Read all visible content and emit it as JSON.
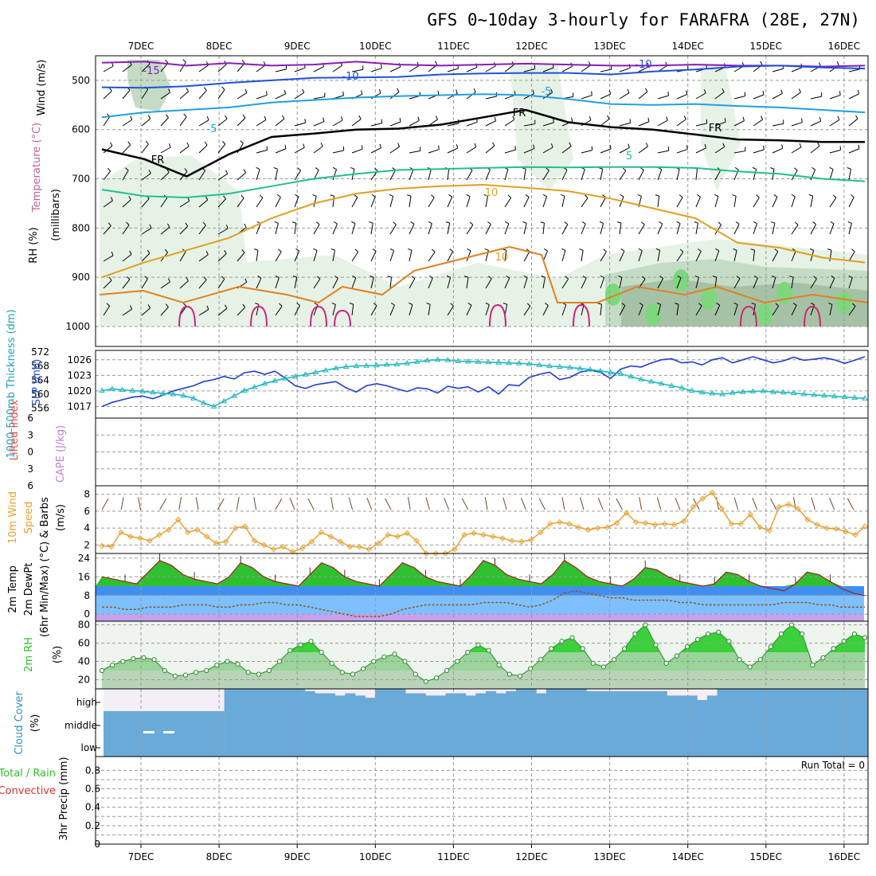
{
  "title": "GFS 0~10day 3-hourly for FARAFRA (28E, 27N)",
  "dates": [
    "7DEC",
    "8DEC",
    "9DEC",
    "10DEC",
    "11DEC",
    "12DEC",
    "13DEC",
    "14DEC",
    "15DEC",
    "16DEC"
  ],
  "run_total": "Run Total = 0",
  "colors": {
    "rh_light": "#e6f2e6",
    "rh_mid": "#c4dcc4",
    "rh_dark": "#a6c2a6",
    "rh_green": "#7dd87d",
    "isotherm_m15": "#8a1cb8",
    "isotherm_m10": "#2050e0",
    "isotherm_m5": "#20a0e0",
    "isotherm_5": "#20c090",
    "isotherm_10": "#e0a020",
    "isotherm_15": "#e08020",
    "isotherm_20": "#d02080",
    "freezing": "#000000",
    "slp": "#1f3fd0",
    "thickness": "#20b8c0",
    "wind10m": "#e8a030",
    "temp_green": "#2ec02e",
    "dewpt": "#8a5a2a",
    "rh2m": "#3ad03a",
    "cloud": "#6aaad8",
    "cape_zero": "#e05050"
  },
  "chart_data": [
    {
      "type": "area",
      "name": "upper-air",
      "ylabel_parts": [
        "Wind (m/s)",
        "Temperature (°C)",
        "RH (%)",
        "(millibars)"
      ],
      "y_ticks": [
        500,
        600,
        700,
        800,
        900,
        1000
      ],
      "ylim": [
        450,
        1000
      ],
      "isotherm_labels": [
        "-15",
        "-10",
        "-10",
        "-5",
        "-5",
        "5",
        "10",
        "10",
        "FR",
        "FR",
        "FR"
      ],
      "isotherms": [
        {
          "label": "-15",
          "color": "#8a1cb8",
          "p": [
            464,
            462,
            470,
            465,
            470,
            468,
            462,
            468,
            470,
            468,
            466,
            468,
            470,
            470,
            468,
            470,
            470,
            472,
            470
          ]
        },
        {
          "label": "-10",
          "color": "#2050e0",
          "p": [
            514,
            515,
            512,
            505,
            500,
            495,
            494,
            493,
            488,
            486,
            485,
            485,
            488,
            482,
            478,
            472,
            470,
            474,
            476
          ]
        },
        {
          "label": "-5",
          "color": "#20a0e0",
          "p": [
            575,
            565,
            560,
            555,
            545,
            540,
            535,
            532,
            530,
            528,
            530,
            538,
            548,
            550,
            548,
            552,
            555,
            560,
            565
          ]
        },
        {
          "label": "5",
          "color": "#20c090",
          "p": [
            722,
            735,
            738,
            730,
            715,
            700,
            690,
            682,
            680,
            678,
            676,
            677,
            676,
            676,
            678,
            685,
            690,
            700,
            705
          ]
        },
        {
          "label": "10",
          "color": "#e0a020",
          "p": [
            900,
            870,
            845,
            820,
            780,
            750,
            730,
            720,
            715,
            712,
            718,
            725,
            740,
            760,
            780,
            830,
            840,
            860,
            870
          ]
        },
        {
          "label": "FR",
          "color": "#000000",
          "p": [
            640,
            660,
            695,
            650,
            615,
            608,
            600,
            598,
            590,
            575,
            560,
            585,
            595,
            600,
            610,
            620,
            622,
            625,
            625
          ]
        }
      ]
    },
    {
      "type": "line",
      "name": "slp-thickness",
      "ylabel_left": "1000-500mb Thickness (dm)",
      "ylabel_right": "SLP (mb)",
      "thickness_ticks": [
        556,
        560,
        564,
        568,
        572
      ],
      "slp_ticks": [
        1017,
        1020,
        1023,
        1026
      ],
      "thickness_ylim": [
        555,
        572
      ],
      "slp_ylim": [
        1016,
        1027.5
      ],
      "series": [
        {
          "name": "SLP",
          "color": "#1f3fd0",
          "values": [
            1017.0,
            1017.8,
            1018.3,
            1018.8,
            1019.0,
            1018.5,
            1019.2,
            1020.0,
            1020.5,
            1021.0,
            1021.8,
            1022.2,
            1022.8,
            1022.3,
            1023.5,
            1023.8,
            1023.2,
            1023.8,
            1022.5,
            1021.0,
            1020.5,
            1021.2,
            1021.5,
            1021.8,
            1020.6,
            1019.8,
            1021.0,
            1021.4,
            1021.0,
            1020.4,
            1019.9,
            1020.6,
            1020.4,
            1019.6,
            1020.9,
            1020.5,
            1020.8,
            1019.8,
            1020.8,
            1019.4,
            1021.2,
            1021.0,
            1022.6,
            1023.2,
            1023.6,
            1022.2,
            1022.6,
            1023.6,
            1024.0,
            1023.6,
            1022.4,
            1024.2,
            1024.8,
            1024.6,
            1025.4,
            1026.0,
            1026.2,
            1025.4,
            1025.6,
            1025.0,
            1026.0,
            1026.4,
            1025.4,
            1026.0,
            1026.6,
            1026.0,
            1025.4,
            1025.8,
            1026.5,
            1025.9,
            1026.1,
            1026.4,
            1026.0,
            1025.3,
            1025.9,
            1026.6
          ]
        },
        {
          "name": "Thickness",
          "color": "#20b8c0",
          "values": [
            561.0,
            561.5,
            561.2,
            561.0,
            560.8,
            560.5,
            560.2,
            560.0,
            559.6,
            558.8,
            557.5,
            556.5,
            558.0,
            559.5,
            561.0,
            562.0,
            563.0,
            563.8,
            564.5,
            565.0,
            565.6,
            566.2,
            566.8,
            567.4,
            567.8,
            568.0,
            568.1,
            568.2,
            568.4,
            568.5,
            568.8,
            569.2,
            569.6,
            569.8,
            569.7,
            569.4,
            569.3,
            569.2,
            569.1,
            569.0,
            568.9,
            568.8,
            568.6,
            568.3,
            568.0,
            567.8,
            567.6,
            567.3,
            567.0,
            566.6,
            566.2,
            565.8,
            565.0,
            564.2,
            563.6,
            563.0,
            562.4,
            561.8,
            561.0,
            560.5,
            560.2,
            560.0,
            560.4,
            560.6,
            560.8,
            560.9,
            560.6,
            560.5,
            560.3,
            560.0,
            559.8,
            559.6,
            559.4,
            559.2,
            559.0,
            558.8
          ]
        }
      ]
    },
    {
      "type": "line",
      "name": "lifted-cape",
      "ylabel_parts": [
        "Lifted Index",
        "CAPE (J/kg)"
      ],
      "y_ticks": [
        -6,
        -3,
        0,
        3,
        6
      ],
      "ylim": [
        -6,
        6
      ],
      "series": [
        {
          "name": "Lifted Index",
          "values": []
        }
      ]
    },
    {
      "type": "line",
      "name": "wind10m",
      "ylabel_parts": [
        "10m Wind",
        "Speed",
        "& Barbs",
        "(m/s)"
      ],
      "y_ticks": [
        2,
        4,
        6,
        8
      ],
      "ylim": [
        1,
        9
      ],
      "series": [
        {
          "name": "10m Wind Speed",
          "color": "#e8a030",
          "values": [
            1.9,
            1.8,
            3.5,
            3.0,
            2.8,
            2.5,
            3.2,
            3.8,
            5.0,
            3.5,
            3.8,
            3.0,
            2.2,
            2.4,
            4.0,
            4.2,
            2.5,
            2.0,
            1.5,
            1.8,
            1.2,
            1.6,
            2.4,
            3.5,
            3.0,
            2.4,
            1.8,
            1.8,
            1.5,
            2.2,
            3.2,
            3.0,
            3.4,
            2.5,
            1.0,
            1.0,
            1.0,
            1.5,
            3.2,
            3.4,
            3.2,
            3.0,
            2.8,
            2.5,
            2.4,
            2.6,
            3.5,
            4.5,
            4.7,
            4.5,
            4.1,
            3.8,
            4.0,
            4.1,
            4.6,
            5.8,
            4.7,
            4.6,
            4.4,
            4.5,
            4.4,
            4.8,
            6.5,
            7.5,
            8.2,
            6.3,
            4.5,
            4.5,
            5.6,
            4.1,
            3.7,
            6.5,
            6.8,
            6.3,
            5.0,
            4.4,
            4.0,
            3.9,
            3.6,
            3.2,
            4.2
          ]
        }
      ]
    },
    {
      "type": "area",
      "name": "temp2m",
      "ylabel_parts": [
        "2m Temp",
        "2m DewPt",
        "(6hr Min/Max) (°C)"
      ],
      "y_ticks": [
        0,
        8,
        16,
        24
      ],
      "ylim": [
        -3,
        26
      ],
      "series": [
        {
          "name": "2m Temp",
          "color": "#2ec02e",
          "values": [
            16,
            15,
            14,
            13,
            18,
            23,
            21,
            17,
            15,
            14,
            13,
            16,
            22,
            20,
            16,
            14,
            13,
            12,
            17,
            22,
            20,
            16,
            14,
            13,
            12,
            17,
            22,
            20,
            16,
            14,
            13,
            12,
            17,
            23,
            21,
            17,
            15,
            14,
            13,
            17,
            23,
            20,
            16,
            14,
            13,
            12,
            15,
            20,
            19,
            16,
            14,
            13,
            12,
            13,
            18,
            17,
            14,
            12,
            11,
            10,
            13,
            18,
            17,
            14,
            11,
            9,
            8
          ]
        },
        {
          "name": "2m DewPt",
          "color": "#8a5a2a",
          "values": [
            3,
            3,
            2,
            2,
            3,
            3,
            3,
            4,
            4,
            4,
            3,
            3,
            4,
            4,
            5,
            5,
            4,
            4,
            3,
            2,
            1,
            0,
            -1,
            -1,
            -1,
            0,
            2,
            3,
            4,
            4,
            4,
            4,
            4,
            5,
            5,
            5,
            4,
            3,
            4,
            6,
            9,
            10,
            9,
            8,
            7,
            7,
            6,
            6,
            6,
            6,
            5,
            5,
            4,
            4,
            4,
            4,
            4,
            4,
            4,
            5,
            5,
            5,
            4,
            4,
            3,
            3,
            3
          ]
        }
      ]
    },
    {
      "type": "area",
      "name": "rh2m",
      "ylabel_parts": [
        "2m RH",
        "(%)"
      ],
      "y_ticks": [
        20,
        40,
        60,
        80
      ],
      "ylim": [
        10,
        84
      ],
      "series": [
        {
          "name": "2m RH",
          "color": "#3ad03a",
          "values": [
            30,
            36,
            40,
            43,
            44,
            42,
            30,
            24,
            25,
            28,
            30,
            36,
            40,
            37,
            28,
            26,
            30,
            40,
            52,
            58,
            62,
            50,
            38,
            28,
            26,
            32,
            40,
            45,
            48,
            40,
            26,
            18,
            22,
            30,
            40,
            50,
            58,
            52,
            36,
            26,
            24,
            32,
            42,
            54,
            62,
            66,
            54,
            38,
            34,
            42,
            54,
            70,
            80,
            58,
            38,
            46,
            56,
            64,
            70,
            72,
            62,
            42,
            34,
            42,
            56,
            70,
            80,
            70,
            36,
            44,
            54,
            62,
            70,
            66
          ]
        }
      ]
    },
    {
      "type": "bar",
      "name": "cloud-cover",
      "ylabel_parts": [
        "Cloud Cover",
        "(%)"
      ],
      "levels": [
        "high",
        "middle",
        "low"
      ],
      "series": [
        {
          "name": "high",
          "color": "#6aaad8",
          "values": [
            0,
            0,
            0,
            0,
            0,
            0,
            0,
            0,
            0,
            0,
            0,
            0,
            100,
            100,
            100,
            100,
            100,
            100,
            100,
            100,
            90,
            80,
            80,
            70,
            80,
            70,
            60,
            100,
            100,
            100,
            80,
            80,
            70,
            70,
            80,
            80,
            70,
            80,
            90,
            80,
            90,
            100,
            100,
            80,
            100,
            100,
            100,
            100,
            90,
            90,
            90,
            90,
            90,
            90,
            90,
            90,
            70,
            70,
            70,
            50,
            70,
            100,
            100,
            100,
            100,
            100,
            100,
            100,
            100,
            100,
            100,
            100,
            100,
            100,
            100,
            100
          ]
        },
        {
          "name": "middle",
          "color": "#6aaad8",
          "values": [
            0,
            0,
            0,
            0,
            0,
            0,
            0,
            0,
            0,
            0,
            0,
            0,
            100,
            100,
            100,
            100,
            100,
            100,
            100,
            100,
            100,
            100,
            100,
            100,
            100,
            100,
            100,
            100,
            100,
            100,
            100,
            100,
            100,
            100,
            100,
            100,
            100,
            100,
            100,
            100,
            100,
            100,
            100,
            100,
            100,
            100,
            100,
            100,
            100,
            100,
            100,
            100,
            100,
            100,
            100,
            100,
            100,
            100,
            100,
            100,
            100,
            100,
            100,
            100,
            100,
            100,
            100,
            100,
            100,
            100,
            100,
            100,
            100,
            100,
            100,
            100
          ]
        }
      ]
    },
    {
      "type": "bar",
      "name": "precip",
      "ylabel_parts": [
        "Total / Rain",
        "Convective",
        "3hr Precip (mm)"
      ],
      "y_ticks": [
        "0",
        "0.2",
        "0.4",
        "0.6",
        "0.8"
      ],
      "ylim": [
        0,
        0.95
      ],
      "series": [
        {
          "name": "3hr Precip",
          "values": []
        }
      ]
    }
  ]
}
